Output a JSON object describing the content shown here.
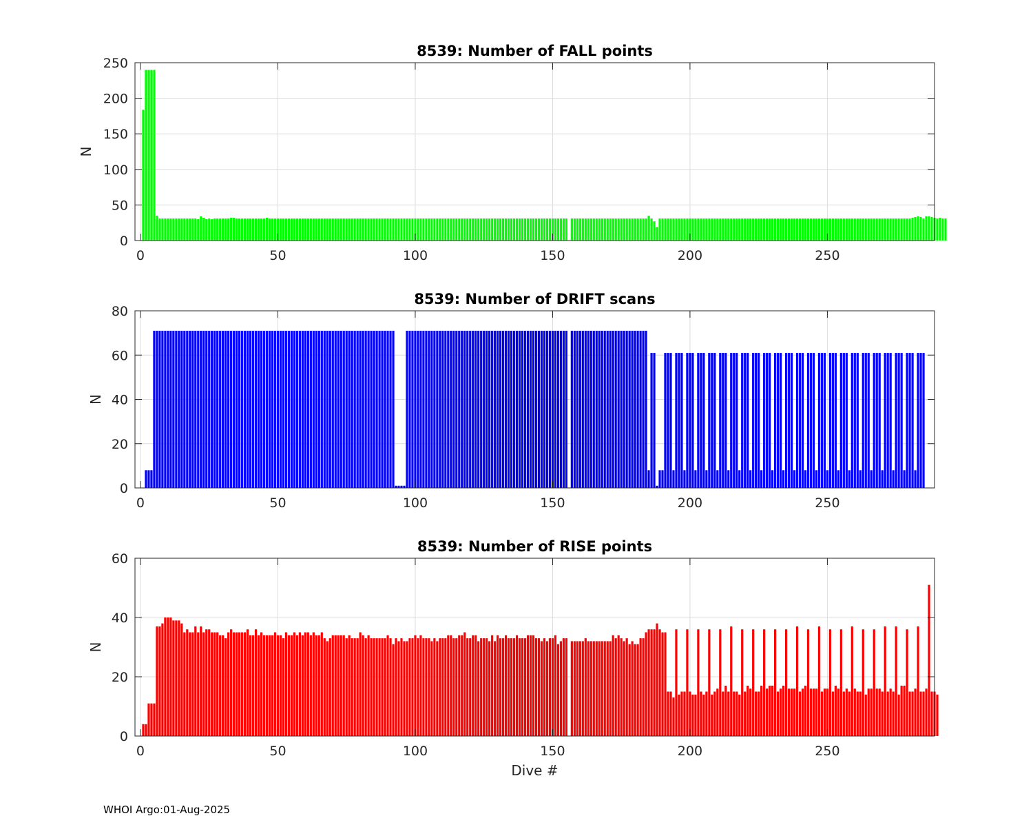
{
  "footer": "WHOI Argo:01-Aug-2025",
  "chart_data": [
    {
      "type": "bar",
      "title": "8539: Number of FALL points",
      "xlabel": "",
      "ylabel": "N",
      "xlim": [
        -2,
        289
      ],
      "ylim": [
        0,
        250
      ],
      "xticks": [
        0,
        50,
        100,
        150,
        200,
        250
      ],
      "yticks": [
        0,
        50,
        100,
        150,
        200,
        250
      ],
      "grid": true,
      "color": "#00ff00",
      "approximate_values": true,
      "gaps": [
        156
      ],
      "values": [
        0,
        184,
        240,
        240,
        240,
        240,
        35,
        31,
        31,
        31,
        31,
        31,
        31,
        31,
        31,
        31,
        31,
        31,
        31,
        31,
        31,
        30,
        34,
        32,
        30,
        31,
        30,
        31,
        31,
        31,
        31,
        31,
        31,
        32,
        32,
        31,
        31,
        31,
        31,
        31,
        31,
        31,
        31,
        31,
        31,
        31,
        32,
        31,
        31,
        31,
        31,
        31,
        31,
        31,
        31,
        31,
        31,
        31,
        31,
        31,
        31,
        31,
        31,
        31,
        31,
        31,
        31,
        31,
        31,
        31,
        31,
        31,
        31,
        31,
        31,
        31,
        31,
        31,
        31,
        31,
        31,
        31,
        31,
        31,
        31,
        31,
        31,
        31,
        31,
        31,
        31,
        31,
        31,
        31,
        31,
        31,
        31,
        31,
        31,
        31,
        31,
        31,
        31,
        31,
        31,
        31,
        31,
        31,
        31,
        31,
        31,
        31,
        31,
        31,
        31,
        31,
        31,
        31,
        31,
        31,
        31,
        31,
        31,
        31,
        31,
        31,
        31,
        31,
        31,
        31,
        31,
        31,
        31,
        31,
        31,
        31,
        31,
        31,
        31,
        31,
        31,
        31,
        31,
        31,
        31,
        31,
        31,
        31,
        31,
        31,
        31,
        31,
        31,
        31,
        31,
        31,
        0,
        31,
        31,
        31,
        31,
        31,
        31,
        31,
        31,
        31,
        31,
        31,
        31,
        31,
        31,
        31,
        31,
        31,
        31,
        31,
        31,
        31,
        31,
        31,
        31,
        31,
        31,
        31,
        31,
        35,
        31,
        27,
        19,
        31,
        31,
        31,
        31,
        31,
        31,
        31,
        31,
        31,
        31,
        31,
        31,
        31,
        31,
        31,
        31,
        31,
        31,
        31,
        31,
        31,
        31,
        31,
        31,
        31,
        31,
        31,
        31,
        31,
        31,
        31,
        31,
        31,
        31,
        31,
        31,
        31,
        31,
        31,
        31,
        31,
        31,
        31,
        31,
        31,
        31,
        31,
        31,
        31,
        31,
        31,
        31,
        31,
        31,
        31,
        31,
        31,
        31,
        31,
        31,
        31,
        31,
        31,
        31,
        31,
        31,
        31,
        31,
        31,
        31,
        31,
        31,
        31,
        31,
        31,
        31,
        31,
        31,
        31,
        31,
        31,
        31,
        31,
        31,
        31,
        31,
        31,
        31,
        31,
        31,
        31,
        31,
        32,
        33,
        34,
        33,
        31,
        34,
        34,
        33,
        32,
        31,
        32,
        31,
        31
      ]
    },
    {
      "type": "bar",
      "title": "8539: Number of DRIFT scans",
      "xlabel": "",
      "ylabel": "N",
      "xlim": [
        -2,
        289
      ],
      "ylim": [
        0,
        80
      ],
      "xticks": [
        0,
        50,
        100,
        150,
        200,
        250
      ],
      "yticks": [
        0,
        20,
        40,
        60,
        80
      ],
      "grid": true,
      "color": "#0000ff",
      "approximate_values": true,
      "gaps": [
        156
      ],
      "values": [
        0,
        0,
        8,
        8,
        8,
        71,
        71,
        71,
        71,
        71,
        71,
        71,
        71,
        71,
        71,
        71,
        71,
        71,
        71,
        71,
        71,
        71,
        71,
        71,
        71,
        71,
        71,
        71,
        71,
        71,
        71,
        71,
        71,
        71,
        71,
        71,
        71,
        71,
        71,
        71,
        71,
        71,
        71,
        71,
        71,
        71,
        71,
        71,
        71,
        71,
        71,
        71,
        71,
        71,
        71,
        71,
        71,
        71,
        71,
        71,
        71,
        71,
        71,
        71,
        71,
        71,
        71,
        71,
        71,
        71,
        71,
        71,
        71,
        71,
        71,
        71,
        71,
        71,
        71,
        71,
        71,
        71,
        71,
        71,
        71,
        71,
        71,
        71,
        71,
        71,
        71,
        71,
        71,
        1,
        1,
        1,
        1,
        71,
        71,
        71,
        71,
        71,
        71,
        71,
        71,
        71,
        71,
        71,
        71,
        71,
        71,
        71,
        71,
        71,
        71,
        71,
        71,
        71,
        71,
        71,
        71,
        71,
        71,
        71,
        71,
        71,
        71,
        71,
        71,
        71,
        71,
        71,
        71,
        71,
        71,
        71,
        71,
        71,
        71,
        71,
        71,
        71,
        71,
        71,
        71,
        71,
        71,
        71,
        71,
        71,
        71,
        71,
        71,
        71,
        71,
        71,
        0,
        71,
        71,
        71,
        71,
        71,
        71,
        71,
        71,
        71,
        71,
        71,
        71,
        71,
        71,
        71,
        71,
        71,
        71,
        71,
        71,
        71,
        71,
        71,
        71,
        71,
        71,
        71,
        71,
        8,
        61,
        61,
        1,
        8,
        8,
        61,
        61,
        61,
        8,
        61,
        61,
        61,
        8,
        61,
        61,
        61,
        8,
        61,
        61,
        61,
        8,
        61,
        61,
        61,
        8,
        61,
        61,
        61,
        8,
        61,
        61,
        61,
        8,
        61,
        61,
        61,
        8,
        61,
        61,
        61,
        8,
        61,
        61,
        61,
        8,
        61,
        61,
        61,
        8,
        61,
        61,
        61,
        8,
        61,
        61,
        61,
        8,
        61,
        61,
        61,
        8,
        61,
        61,
        61,
        8,
        61,
        61,
        61,
        8,
        61,
        61,
        61,
        8,
        61,
        61,
        61,
        8,
        61,
        61,
        61,
        8,
        61,
        61,
        61,
        8,
        61,
        61,
        61,
        8,
        61,
        61,
        61,
        8,
        61,
        61,
        61,
        8,
        61,
        61,
        61
      ]
    },
    {
      "type": "bar",
      "title": "8539: Number of RISE points",
      "xlabel": "Dive #",
      "ylabel": "N",
      "xlim": [
        -2,
        289
      ],
      "ylim": [
        0,
        60
      ],
      "xticks": [
        0,
        50,
        100,
        150,
        200,
        250
      ],
      "yticks": [
        0,
        20,
        40,
        60
      ],
      "grid": true,
      "color": "#ff0000",
      "approximate_values": true,
      "gaps": [
        156
      ],
      "values": [
        0,
        4,
        4,
        11,
        11,
        11,
        37,
        37,
        38,
        40,
        40,
        40,
        39,
        39,
        39,
        38,
        35,
        36,
        35,
        35,
        37,
        35,
        37,
        35,
        36,
        36,
        35,
        35,
        35,
        34,
        34,
        33,
        35,
        36,
        35,
        35,
        35,
        35,
        35,
        36,
        34,
        34,
        36,
        34,
        35,
        34,
        34,
        34,
        34,
        35,
        34,
        34,
        33,
        35,
        34,
        34,
        35,
        34,
        35,
        34,
        35,
        35,
        34,
        35,
        34,
        34,
        35,
        33,
        32,
        33,
        34,
        34,
        34,
        34,
        34,
        33,
        34,
        33,
        33,
        33,
        35,
        34,
        33,
        34,
        33,
        33,
        33,
        33,
        33,
        33,
        34,
        33,
        31,
        33,
        32,
        33,
        32,
        32,
        33,
        33,
        34,
        33,
        34,
        33,
        33,
        33,
        32,
        33,
        32,
        33,
        33,
        33,
        34,
        34,
        33,
        33,
        34,
        34,
        35,
        33,
        33,
        34,
        34,
        32,
        33,
        33,
        33,
        32,
        34,
        32,
        34,
        33,
        33,
        34,
        33,
        33,
        33,
        34,
        33,
        33,
        33,
        34,
        34,
        34,
        33,
        33,
        32,
        33,
        32,
        33,
        33,
        34,
        31,
        32,
        33,
        33,
        0,
        32,
        32,
        32,
        32,
        32,
        33,
        32,
        32,
        32,
        32,
        32,
        32,
        32,
        32,
        32,
        34,
        33,
        34,
        33,
        32,
        33,
        31,
        32,
        31,
        31,
        33,
        33,
        35,
        36,
        36,
        36,
        38,
        36,
        35,
        35,
        15,
        15,
        13,
        36,
        14,
        15,
        15,
        36,
        15,
        14,
        14,
        36,
        15,
        14,
        15,
        36,
        14,
        15,
        16,
        36,
        15,
        17,
        15,
        37,
        15,
        15,
        14,
        36,
        15,
        17,
        16,
        36,
        15,
        15,
        17,
        36,
        16,
        17,
        17,
        36,
        15,
        16,
        17,
        36,
        16,
        16,
        16,
        37,
        15,
        16,
        17,
        36,
        16,
        16,
        16,
        37,
        15,
        16,
        16,
        36,
        15,
        17,
        16,
        36,
        15,
        16,
        15,
        37,
        16,
        15,
        15,
        36,
        14,
        16,
        16,
        36,
        16,
        16,
        15,
        37,
        15,
        16,
        15,
        37,
        14,
        17,
        17,
        36,
        15,
        15,
        16,
        37,
        15,
        15,
        16,
        51,
        15,
        15,
        14
      ]
    }
  ]
}
